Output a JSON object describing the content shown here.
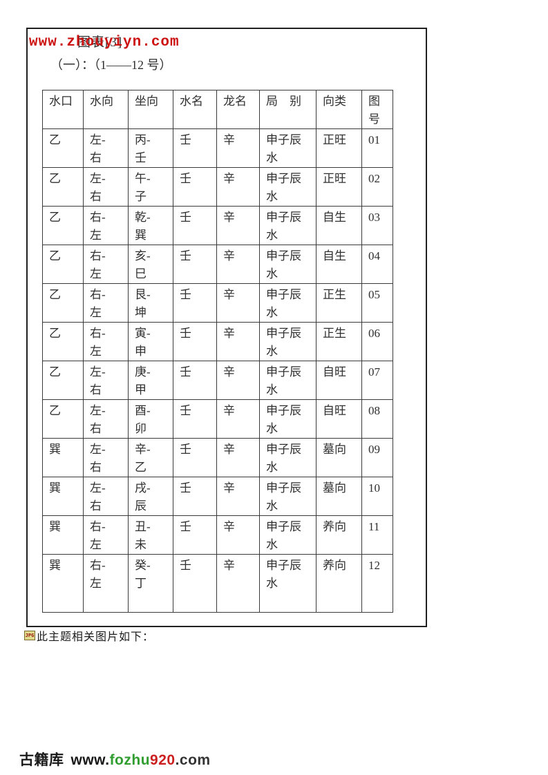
{
  "colors": {
    "watermark_red": "#cc1111",
    "footer_green": "#2f9e2f",
    "footer_red": "#cc2020",
    "body_text": "#2f2f2f",
    "table_border": "#3a3a3a"
  },
  "header": {
    "title": "图表[3]",
    "subtitle": "（一）：（1——12 号）",
    "watermark": "www.zhouyiyn.com"
  },
  "table": {
    "headers": [
      "水口",
      "水向",
      "坐向",
      "水名",
      "龙名",
      "局　别",
      "向类",
      "图\n号"
    ],
    "rows": [
      [
        "乙",
        "左-\n右",
        "丙-\n壬",
        "壬",
        "辛",
        "申子辰\n水",
        "正旺",
        "01"
      ],
      [
        "乙",
        "左-\n右",
        "午-\n子",
        "壬",
        "辛",
        "申子辰\n水",
        "正旺",
        "02"
      ],
      [
        "乙",
        "右-\n左",
        "乾-\n巽",
        "壬",
        "辛",
        "申子辰\n水",
        "自生",
        "03"
      ],
      [
        "乙",
        "右-\n左",
        "亥-\n巳",
        "壬",
        "辛",
        "申子辰\n水",
        "自生",
        "04"
      ],
      [
        "乙",
        "右-\n左",
        "艮-\n坤",
        "壬",
        "辛",
        "申子辰\n水",
        "正生",
        "05"
      ],
      [
        "乙",
        "右-\n左",
        "寅-\n申",
        "壬",
        "辛",
        "申子辰\n水",
        "正生",
        "06"
      ],
      [
        "乙",
        "左-\n右",
        "庚-\n甲",
        "壬",
        "辛",
        "申子辰\n水",
        "自旺",
        "07"
      ],
      [
        "乙",
        "左-\n右",
        "酉-\n卯",
        "壬",
        "辛",
        "申子辰\n水",
        "自旺",
        "08"
      ],
      [
        "巽",
        "左-\n右",
        "辛-\n乙",
        "壬",
        "辛",
        "申子辰\n水",
        "墓向",
        "09"
      ],
      [
        "巽",
        "左-\n右",
        "戌-\n辰",
        "壬",
        "辛",
        "申子辰\n水",
        "墓向",
        "10"
      ],
      [
        "巽",
        "右-\n左",
        "丑-\n未",
        "壬",
        "辛",
        "申子辰\n水",
        "养向",
        "11"
      ],
      [
        "巽",
        "右-\n左",
        "癸-\n丁",
        "壬",
        "辛",
        "申子辰\n水",
        "养向",
        "12"
      ]
    ]
  },
  "attachment": {
    "icon_label": "JPG",
    "text": "此主题相关图片如下："
  },
  "footer": {
    "library": "古籍库",
    "www": "www.",
    "green": "fozhu",
    "red": "920",
    "com": ".com"
  }
}
